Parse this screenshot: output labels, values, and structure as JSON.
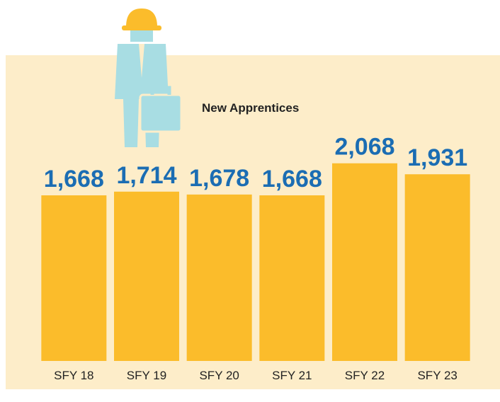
{
  "chart_data": {
    "type": "bar",
    "title": "New Apprentices",
    "categories": [
      "SFY 18",
      "SFY 19",
      "SFY 20",
      "SFY 21",
      "SFY 22",
      "SFY 23"
    ],
    "values": [
      1668,
      1714,
      1678,
      1668,
      2068,
      1931
    ],
    "value_labels": [
      "1,668",
      "1,714",
      "1,678",
      "1,668",
      "2,068",
      "1,931"
    ],
    "color": "#fbbc2b",
    "ylim": [
      -400,
      3400
    ]
  }
}
